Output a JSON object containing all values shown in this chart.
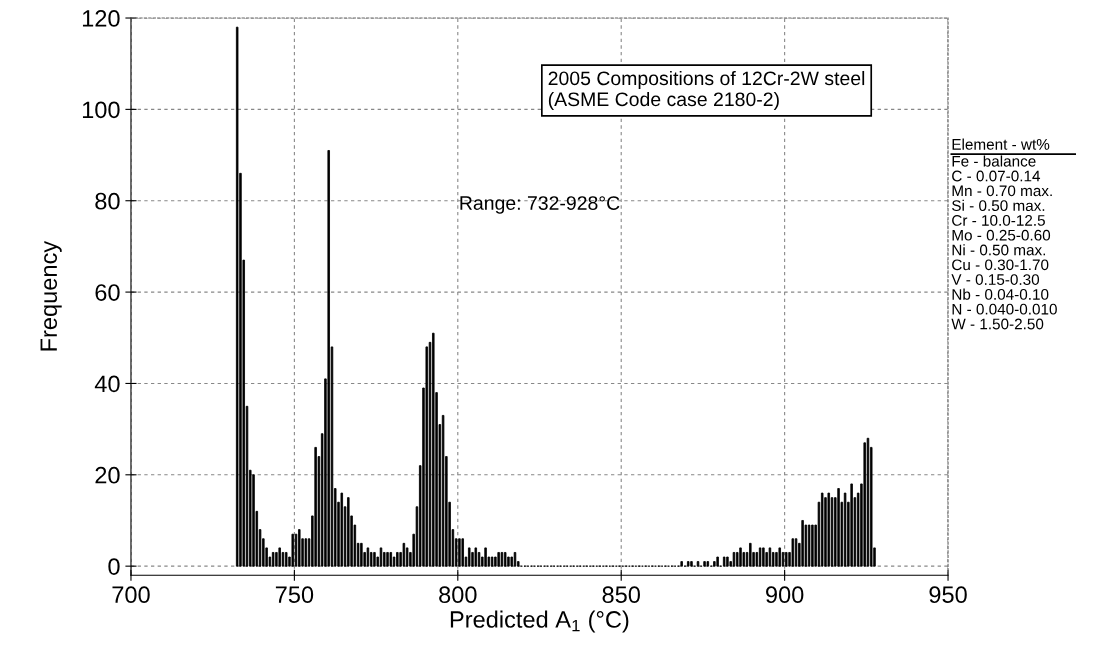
{
  "chart_data": {
    "type": "histogram",
    "xlabel": "Predicted A$_{1}$ (°C)",
    "ylabel": "Frequency",
    "bins": [
      732,
      733,
      734,
      735,
      736,
      737,
      738,
      739,
      740,
      741,
      742,
      743,
      744,
      745,
      746,
      747,
      748,
      749,
      750,
      751,
      752,
      753,
      754,
      755,
      756,
      757,
      758,
      759,
      760,
      761,
      762,
      763,
      764,
      765,
      766,
      767,
      768,
      769,
      770,
      771,
      772,
      773,
      774,
      775,
      776,
      777,
      778,
      779,
      780,
      781,
      782,
      783,
      784,
      785,
      786,
      787,
      788,
      789,
      790,
      791,
      792,
      793,
      794,
      795,
      796,
      797,
      798,
      799,
      800,
      801,
      802,
      803,
      804,
      805,
      806,
      807,
      808,
      809,
      810,
      811,
      812,
      813,
      814,
      815,
      816,
      817,
      818,
      819,
      820,
      821,
      822,
      823,
      824,
      825,
      826,
      827,
      828,
      829,
      830,
      831,
      832,
      833,
      834,
      835,
      836,
      837,
      838,
      839,
      840,
      841,
      842,
      843,
      844,
      845,
      846,
      847,
      848,
      849,
      850,
      851,
      852,
      853,
      854,
      855,
      856,
      857,
      858,
      859,
      860,
      861,
      862,
      863,
      864,
      865,
      866,
      867,
      868,
      869,
      870,
      871,
      872,
      873,
      874,
      875,
      876,
      877,
      878,
      879,
      880,
      881,
      882,
      883,
      884,
      885,
      886,
      887,
      888,
      889,
      890,
      891,
      892,
      893,
      894,
      895,
      896,
      897,
      898,
      899,
      900,
      901,
      902,
      903,
      904,
      905,
      906,
      907,
      908,
      909,
      910,
      911,
      912,
      913,
      914,
      915,
      916,
      917,
      918,
      919,
      920,
      921,
      922,
      923,
      924,
      925,
      926,
      927,
      928
    ],
    "values": [
      118,
      86,
      67,
      35,
      21,
      20,
      12,
      8,
      6,
      4,
      2,
      3,
      3,
      4,
      3,
      3,
      2,
      7,
      7,
      8,
      6,
      6,
      6,
      11,
      26,
      24,
      29,
      41,
      91,
      48,
      17,
      14,
      16,
      13,
      15,
      11,
      9,
      5,
      5,
      3,
      4,
      3,
      3,
      2,
      4,
      3,
      3,
      3,
      2,
      3,
      3,
      5,
      4,
      3,
      7,
      13,
      22,
      39,
      48,
      49,
      51,
      38,
      31,
      33,
      24,
      14,
      8,
      6,
      6,
      6,
      2,
      4,
      3,
      4,
      3,
      2,
      4,
      2,
      2,
      2,
      3,
      3,
      3,
      2,
      2,
      3,
      1,
      0,
      0,
      0,
      0,
      0,
      0,
      0,
      0,
      0,
      0,
      0,
      0,
      0,
      0,
      0,
      0,
      0,
      0,
      0,
      0,
      0,
      0,
      0,
      0,
      0,
      0,
      0,
      0,
      0,
      0,
      0,
      0,
      0,
      0,
      0,
      0,
      0,
      0,
      0,
      0,
      0,
      0,
      0,
      0,
      0,
      0,
      0,
      0,
      0,
      1,
      0,
      1,
      1,
      0,
      1,
      0,
      1,
      1,
      0,
      1,
      2,
      0,
      2,
      2,
      1,
      3,
      3,
      4,
      3,
      3,
      5,
      3,
      3,
      4,
      4,
      3,
      4,
      3,
      3,
      4,
      3,
      3,
      3,
      6,
      6,
      5,
      10,
      9,
      9,
      9,
      9,
      14,
      16,
      15,
      16,
      15,
      15,
      17,
      14,
      16,
      14,
      18,
      15,
      16,
      18,
      27,
      28,
      26,
      4
    ],
    "color": "#000000",
    "xlim": [
      700,
      950
    ],
    "ylim": [
      -2,
      120
    ],
    "xticks": [
      700,
      750,
      800,
      850,
      900,
      950
    ],
    "yticks": [
      0,
      20,
      40,
      60,
      80,
      100,
      120
    ],
    "grid": true,
    "legend": false,
    "annotations": [
      "2005 Compositions of 12Cr-2W steel\n(ASME Code case 2180-2)",
      "Range: 732-928°C",
      "Element - wt%",
      "Fe - balance\nC - 0.07-0.14\nMn - 0.70 max.\nSi - 0.50 max.\nCr - 10.0-12.5\nMo - 0.25-0.60\nNi - 0.50 max.\nCu - 0.30-1.70\nV - 0.15-0.30\nNb - 0.04-0.10\nN - 0.040-0.010\nW - 1.50-2.50"
    ]
  }
}
